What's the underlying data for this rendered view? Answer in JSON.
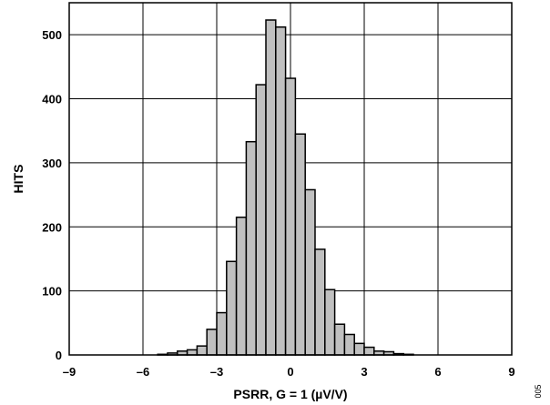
{
  "chart_data": {
    "type": "bar",
    "title": "",
    "xlabel": "PSRR, G = 1 (µV/V)",
    "ylabel": "HITS",
    "xlim": [
      -9,
      9
    ],
    "ylim": [
      0,
      550
    ],
    "x_ticks": [
      -9,
      -6,
      -3,
      0,
      3,
      6,
      9
    ],
    "x_tick_labels": [
      "–9",
      "–6",
      "–3",
      "0",
      "3",
      "6",
      "9"
    ],
    "y_ticks": [
      0,
      100,
      200,
      300,
      400,
      500
    ],
    "y_tick_labels": [
      "0",
      "100",
      "200",
      "300",
      "400",
      "500"
    ],
    "grid": true,
    "bin_width": 0.4,
    "bin_starts": [
      -5.4,
      -5.0,
      -4.6,
      -4.2,
      -3.8,
      -3.4,
      -3.0,
      -2.6,
      -2.2,
      -1.8,
      -1.4,
      -1.0,
      -0.6,
      -0.2,
      0.2,
      0.6,
      1.0,
      1.4,
      1.8,
      2.2,
      2.6,
      3.0,
      3.4,
      3.8,
      4.2,
      4.6
    ],
    "values": [
      1,
      3,
      6,
      8,
      14,
      40,
      66,
      146,
      215,
      333,
      422,
      523,
      512,
      432,
      345,
      258,
      165,
      102,
      48,
      32,
      18,
      12,
      6,
      5,
      2,
      1
    ],
    "bar_color": "#c0c0c0",
    "edge_color": "#000000"
  },
  "figure_id": "005"
}
